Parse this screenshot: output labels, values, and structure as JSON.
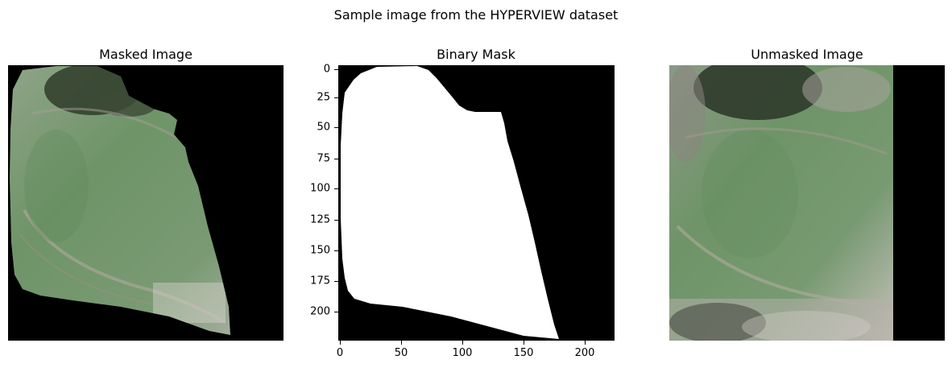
{
  "figure": {
    "suptitle": "Sample image from the HYPERVIEW dataset"
  },
  "panels": [
    {
      "title": "Masked Image"
    },
    {
      "title": "Binary Mask"
    },
    {
      "title": "Unmasked Image"
    }
  ],
  "mask_axes": {
    "y_ticks": [
      "0",
      "25",
      "50",
      "75",
      "100",
      "125",
      "150",
      "175",
      "200"
    ],
    "x_ticks": [
      "0",
      "50",
      "100",
      "150",
      "200"
    ]
  },
  "colors": {
    "field_green": "#6f9468",
    "field_dark": "#3a4a34",
    "field_light": "#c9c4c0",
    "mask_white": "#ffffff",
    "background_black": "#000000"
  }
}
